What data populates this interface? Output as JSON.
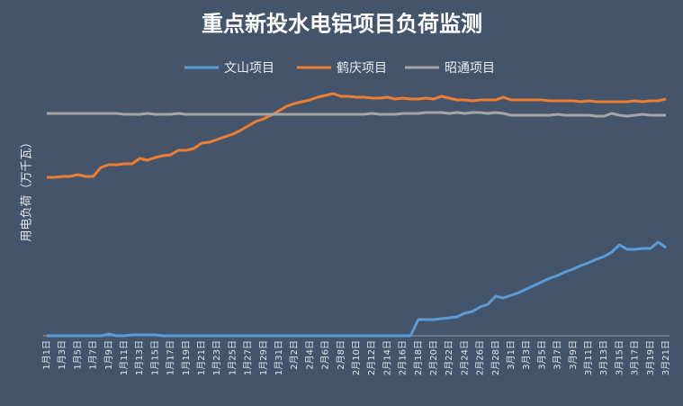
{
  "chart_data": {
    "type": "line",
    "title": "重点新投水电铝项目负荷监测",
    "y_label": "用电负荷（万千瓦）",
    "categories": [
      "1月1日",
      null,
      "1月3日",
      null,
      "1月5日",
      null,
      "1月7日",
      null,
      "1月9日",
      null,
      "1月11日",
      null,
      "1月13日",
      null,
      "1月15日",
      null,
      "1月17日",
      null,
      "1月19日",
      null,
      "1月21日",
      null,
      "1月23日",
      null,
      "1月25日",
      null,
      "1月27日",
      null,
      "1月29日",
      null,
      "1月31日",
      null,
      "2月2日",
      null,
      "2月4日",
      null,
      "2月6日",
      null,
      "2月8日",
      null,
      "2月10日",
      null,
      "2月12日",
      null,
      "2月14日",
      null,
      "2月16日",
      null,
      "2月18日",
      null,
      "2月20日",
      null,
      "2月22日",
      null,
      "2月24日",
      null,
      "2月26日",
      null,
      "2月28日",
      null,
      "3月1日",
      null,
      "3月3日",
      null,
      "3月5日",
      null,
      "3月7日",
      null,
      "3月9日",
      null,
      "3月11日",
      null,
      "3月13日",
      null,
      "3月15日",
      null,
      "3月17日",
      null,
      "3月19日",
      null,
      "3月21日"
    ],
    "series": [
      {
        "name": "文山项目",
        "color": "#5b9bd5",
        "values": [
          0,
          0,
          0,
          0,
          0,
          0,
          0,
          0,
          2,
          0,
          0,
          1,
          1,
          1,
          1,
          0,
          0,
          0,
          0,
          0,
          0,
          0,
          0,
          0,
          0,
          0,
          0,
          0,
          0,
          0,
          0,
          0,
          0,
          0,
          0,
          0,
          0,
          0,
          0,
          0,
          0,
          0,
          0,
          0,
          0,
          0,
          0,
          0,
          18,
          18,
          18,
          19,
          20,
          21,
          25,
          27,
          32,
          35,
          44,
          42,
          45,
          48,
          52,
          56,
          60,
          64,
          67,
          71,
          74,
          78,
          81,
          85,
          88,
          93,
          101,
          96,
          96,
          97,
          97,
          104,
          98
        ]
      },
      {
        "name": "鹤庆项目",
        "color": "#ed7d31",
        "values": [
          176,
          176,
          177,
          177,
          179,
          177,
          177,
          187,
          190,
          190,
          191,
          191,
          197,
          195,
          198,
          200,
          201,
          206,
          206,
          208,
          214,
          215,
          218,
          221,
          224,
          228,
          233,
          238,
          241,
          245,
          250,
          255,
          258,
          260,
          262,
          265,
          267,
          269,
          266,
          266,
          265,
          265,
          264,
          264,
          265,
          263,
          264,
          263,
          263,
          264,
          263,
          266,
          264,
          262,
          262,
          261,
          262,
          262,
          262,
          265,
          262,
          262,
          262,
          262,
          262,
          261,
          261,
          261,
          261,
          260,
          261,
          260,
          260,
          260,
          260,
          260,
          261,
          260,
          261,
          261,
          263
        ]
      },
      {
        "name": "昭通项目",
        "color": "#a5a5a5",
        "values": [
          247,
          247,
          247,
          247,
          247,
          247,
          247,
          247,
          247,
          247,
          246,
          246,
          246,
          247,
          246,
          246,
          246,
          247,
          246,
          246,
          246,
          246,
          246,
          246,
          246,
          246,
          246,
          246,
          246,
          246,
          246,
          246,
          246,
          246,
          246,
          246,
          246,
          246,
          246,
          246,
          246,
          246,
          247,
          246,
          246,
          246,
          247,
          247,
          247,
          248,
          248,
          248,
          247,
          248,
          247,
          248,
          248,
          247,
          248,
          247,
          245,
          245,
          245,
          245,
          245,
          245,
          246,
          245,
          245,
          245,
          245,
          244,
          244,
          247,
          245,
          244,
          245,
          246,
          245,
          245,
          245
        ]
      }
    ],
    "ylim": [
      0,
      280
    ]
  }
}
